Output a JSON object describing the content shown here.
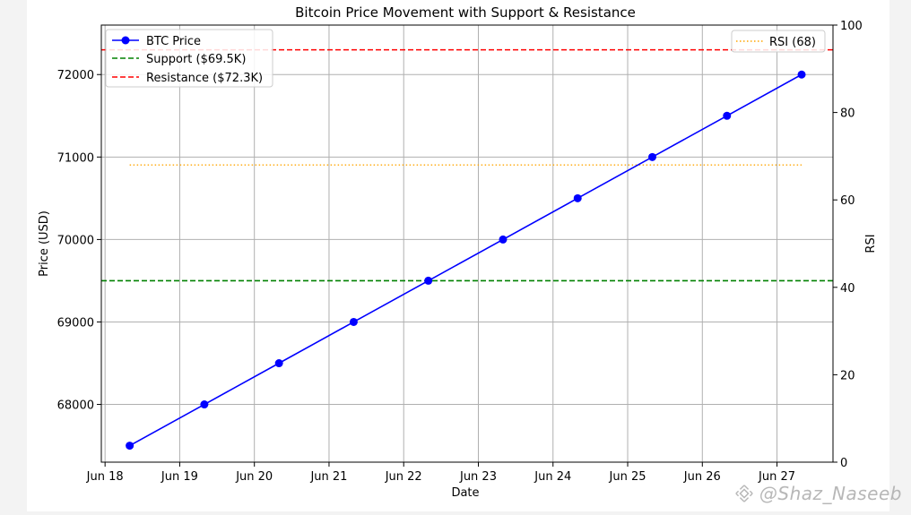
{
  "chart_data": {
    "type": "line",
    "title": "Bitcoin Price Movement with Support & Resistance",
    "xlabel": "Date",
    "ylabel": "Price (USD)",
    "y2label": "RSI",
    "x_tick_labels": [
      "Jun 18",
      "Jun 19",
      "Jun 20",
      "Jun 21",
      "Jun 22",
      "Jun 23",
      "Jun 24",
      "Jun 25",
      "Jun 26",
      "Jun 27"
    ],
    "x_ticks": [
      18,
      19,
      20,
      21,
      22,
      23,
      24,
      25,
      26,
      27
    ],
    "xlim": [
      17.95,
      27.75
    ],
    "ylim": [
      67300,
      72600
    ],
    "y_ticks": [
      68000,
      69000,
      70000,
      71000,
      72000
    ],
    "y2lim": [
      0,
      100
    ],
    "y2_ticks": [
      0,
      20,
      40,
      60,
      80,
      100
    ],
    "grid": true,
    "series": [
      {
        "name": "BTC Price",
        "color": "#0000ff",
        "style": "solid-marker",
        "x": [
          18.33,
          19.33,
          20.33,
          21.33,
          22.33,
          23.33,
          24.33,
          25.33,
          26.33,
          27.33
        ],
        "y": [
          67500,
          68000,
          68500,
          69000,
          69500,
          70000,
          70500,
          71000,
          71500,
          72000
        ]
      }
    ],
    "hlines": [
      {
        "name": "Support ($69.5K)",
        "value": 69500,
        "color": "#008000",
        "style": "dashed"
      },
      {
        "name": "Resistance ($72.3K)",
        "value": 72300,
        "color": "#ff0000",
        "style": "dashed"
      }
    ],
    "rsi": {
      "name": "RSI (68)",
      "value": 68,
      "x_range": [
        18.33,
        27.33
      ],
      "color": "#ffa500",
      "style": "dotted"
    },
    "legend_left_placement": "upper left",
    "legend_right_placement": "upper right"
  },
  "watermark": {
    "text": "@Shaz_Naseeb"
  }
}
